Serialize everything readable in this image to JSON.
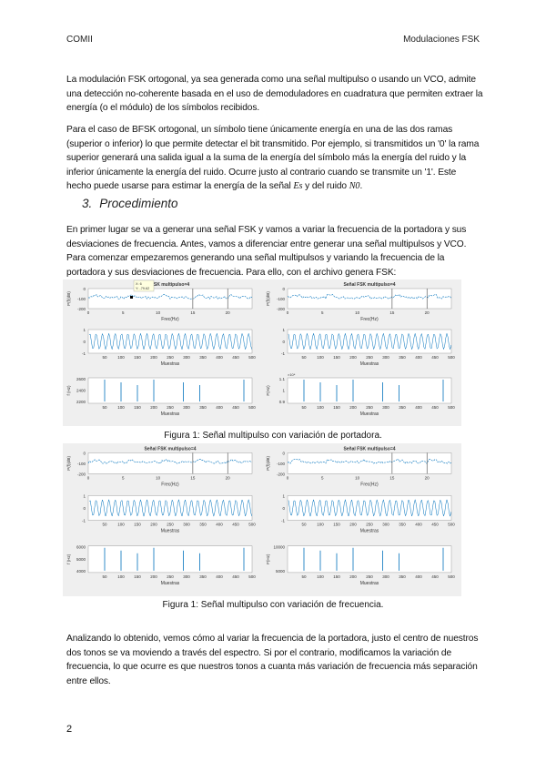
{
  "header": {
    "left": "COMII",
    "right": "Modulaciones FSK"
  },
  "paragraphs": {
    "p1": "La modulación FSK ortogonal, ya sea generada como una señal multipulso o usando un VCO, admite una detección no-coherente basada en el uso de demoduladores en cuadratura que permiten extraer la energía (o el módulo) de los símbolos recibidos.",
    "p2_a": "Para el caso de BFSK ortogonal, un símbolo tiene únicamente energía en una de las dos ramas (superior o inferior) lo que permite detectar el bit transmitido. Por ejemplo, si transmitidos un '0' la rama superior generará una salida igual a la suma de la energía del símbolo más la energía del ruido y la inferior únicamente la energía del ruido. Ocurre justo al contrario cuando se transmite un '1'. Este hecho puede usarse para estimar la energía de la señal ",
    "p2_es": "Es",
    "p2_b": " y del ruido ",
    "p2_n0": "N0",
    "p2_c": ".",
    "p3": "En primer lugar se va a generar una señal FSK y vamos a variar la frecuencia de la portadora y sus desviaciones de frecuencia. Antes, vamos a diferenciar entre generar una señal multipulsos y VCO. Para comenzar empezaremos generando una señal multipulsos y variando la frecuencia de la portadora y sus desviaciones de frecuencia. Para ello, con el archivo genera FSK:",
    "p4": "Analizando lo obtenido, vemos cómo al variar la frecuencia de la portadora, justo el centro de nuestros dos tonos se va moviendo a través del espectro. Si por el contrario, modificamos la variación de frecuencia, lo que ocurre es que nuestros tonos a cuanta más variación de frecuencia más separación entre ellos."
  },
  "section": {
    "number": "3.",
    "title": "Procedimiento"
  },
  "figures": [
    {
      "caption": "Figura 1: Señal multipulso con variación de portadora.",
      "panels": [
        {
          "title": "FSK multipulso=4",
          "datatip": [
            "X: 6",
            "Y: -79.62"
          ],
          "spec_ylabel": "P(f)(dB)",
          "spec_yticks": [
            "0",
            "-100",
            "-200"
          ],
          "spec_xticks": [
            "0",
            "5",
            "10",
            "15",
            "20"
          ],
          "spec_xlabel": "Frec(Hz)",
          "wave_yticks": [
            "1",
            "0",
            "-1"
          ],
          "wave_xticks": [
            "50",
            "100",
            "150",
            "200",
            "250",
            "300",
            "350",
            "400",
            "450",
            "500"
          ],
          "wave_xlabel": "Muestras",
          "freq_ylabel": "f (Hz)",
          "freq_yticks": [
            "2600",
            "2400",
            "2200"
          ],
          "freq_xticks": [
            "50",
            "100",
            "150",
            "200",
            "250",
            "300",
            "350",
            "400",
            "450",
            "500"
          ],
          "freq_xlabel": "Muestras"
        },
        {
          "title": "Señal FSK multipulso=4",
          "spec_ylabel": "P(f)(dB)",
          "spec_yticks": [
            "0",
            "-100",
            "-200"
          ],
          "spec_xticks": [
            "0",
            "5",
            "10",
            "15",
            "20"
          ],
          "spec_xlabel": "Frec(Hz)",
          "wave_yticks": [
            "1",
            "0",
            "-1"
          ],
          "wave_xticks": [
            "50",
            "100",
            "150",
            "200",
            "250",
            "300",
            "350",
            "400",
            "450",
            "500"
          ],
          "wave_xlabel": "Muestras",
          "freq_ylabel": "F(Hz)",
          "freq_exp": "×10⁴",
          "freq_yticks": [
            "1.1",
            "1",
            "0.9"
          ],
          "freq_xticks": [
            "50",
            "100",
            "150",
            "200",
            "250",
            "300",
            "350",
            "400",
            "450",
            "500"
          ],
          "freq_xlabel": "Muestras"
        }
      ]
    },
    {
      "caption": "Figura 1: Señal multipulso con variación de frecuencia.",
      "panels": [
        {
          "title": "Señal FSK multipulso=4",
          "spec_ylabel": "P(f)(dB)",
          "spec_yticks": [
            "0",
            "-100",
            "-200"
          ],
          "spec_xticks": [
            "0",
            "5",
            "10",
            "15",
            "20"
          ],
          "spec_xlabel": "Frec(Hz)",
          "wave_yticks": [
            "1",
            "0",
            "-1"
          ],
          "wave_xticks": [
            "50",
            "100",
            "150",
            "200",
            "250",
            "300",
            "350",
            "400",
            "450",
            "500"
          ],
          "wave_xlabel": "Muestras",
          "freq_ylabel": "f (Hz)",
          "freq_yticks": [
            "6000",
            "5000",
            "4000"
          ],
          "freq_xticks": [
            "50",
            "100",
            "150",
            "200",
            "250",
            "300",
            "350",
            "400",
            "450",
            "500"
          ],
          "freq_xlabel": "Muestras"
        },
        {
          "title": "Señal FSK multipulso=4",
          "spec_ylabel": "P(f)(dB)",
          "spec_yticks": [
            "0",
            "-100",
            "-200"
          ],
          "spec_xticks": [
            "0",
            "5",
            "10",
            "15",
            "20"
          ],
          "spec_xlabel": "Frec(Hz)",
          "wave_yticks": [
            "1",
            "0",
            "-1"
          ],
          "wave_xticks": [
            "50",
            "100",
            "150",
            "200",
            "250",
            "300",
            "350",
            "400",
            "450",
            "500"
          ],
          "wave_xlabel": "Muestras",
          "freq_ylabel": "F(Hz)",
          "freq_yticks": [
            "10000",
            "5000"
          ],
          "freq_xticks": [
            "50",
            "100",
            "150",
            "200",
            "250",
            "300",
            "350",
            "400",
            "450",
            "500"
          ],
          "freq_xlabel": "Muestras"
        }
      ]
    }
  ],
  "page_number": "2",
  "colors": {
    "plot_line": "#0072BD",
    "figure_bg": "#EFEFEF"
  }
}
